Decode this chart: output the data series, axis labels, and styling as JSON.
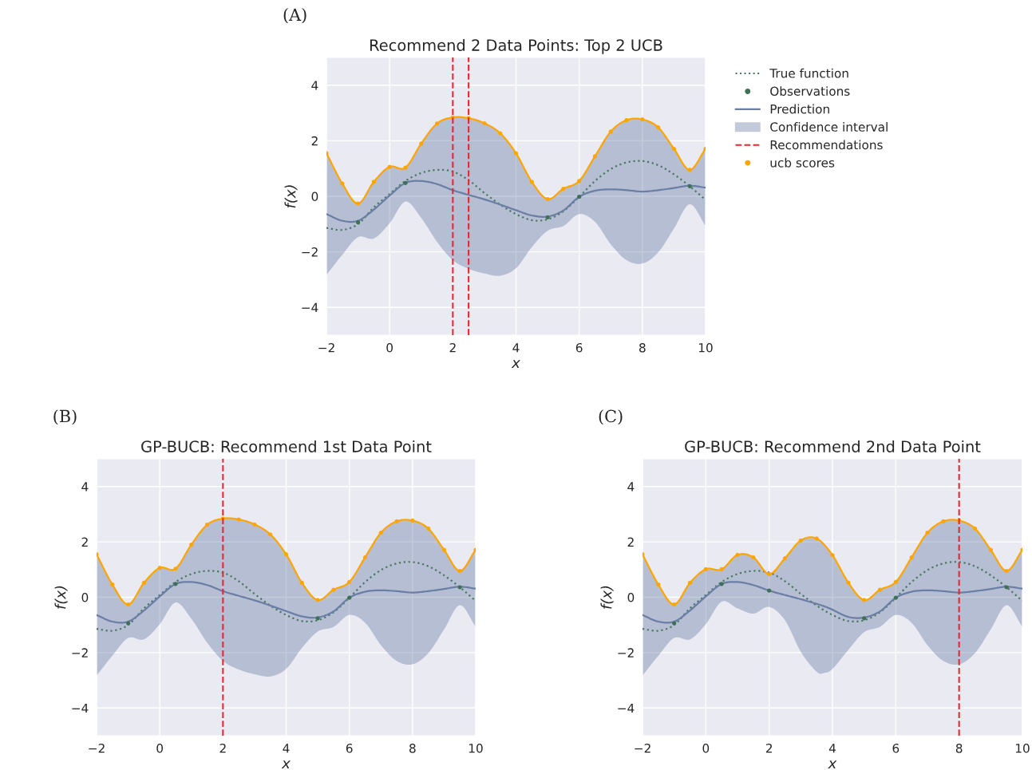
{
  "chart_data": [
    {
      "type": "line",
      "title": "Recommend 2 Data Points: Top 2 UCB",
      "xlabel": "x",
      "ylabel": "f(x)",
      "annotations": [
        "(A)",
        "Confidence interval",
        "Recommendations"
      ],
      "xlim": [
        -2,
        10
      ],
      "ylim": [
        -5,
        5
      ],
      "xticks": [
        -2,
        0,
        2,
        4,
        6,
        8,
        10
      ],
      "yticks": [
        -4,
        -2,
        0,
        2,
        4
      ],
      "grid": true,
      "legend": "right",
      "series": [
        {
          "name": "True function",
          "line_style": "dotted",
          "color": "#4a7a60",
          "x": [
            -2,
            -1.5,
            -1,
            -0.5,
            0,
            0.5,
            1,
            1.5,
            2,
            2.5,
            3,
            3.5,
            4,
            4.5,
            5,
            5.5,
            6,
            6.5,
            7,
            7.5,
            8,
            8.5,
            9,
            9.5,
            10
          ],
          "values": [
            -1.14,
            -1.21,
            -1.0,
            -0.4,
            0.08,
            0.55,
            0.84,
            0.95,
            0.89,
            0.58,
            0.12,
            -0.3,
            -0.64,
            -0.86,
            -0.83,
            -0.54,
            -0.02,
            0.55,
            0.98,
            1.22,
            1.27,
            1.12,
            0.79,
            0.36,
            -0.13
          ]
        },
        {
          "name": "Observations",
          "type": "scatter",
          "marker": "circle",
          "color": "#3f7157",
          "x": [
            -1,
            0.5,
            5,
            6,
            9.5
          ],
          "values": [
            -0.94,
            0.48,
            -0.76,
            -0.02,
            0.36
          ]
        },
        {
          "name": "Prediction",
          "color": "#6a7ea6",
          "x": [
            -2,
            -1.5,
            -1,
            -0.5,
            0,
            0.5,
            1,
            1.5,
            2,
            2.5,
            3,
            3.5,
            4,
            4.5,
            5,
            5.5,
            6,
            6.5,
            7,
            7.5,
            8,
            8.5,
            9,
            9.5,
            10
          ],
          "values": [
            -0.64,
            -0.88,
            -0.88,
            -0.48,
            0.03,
            0.48,
            0.55,
            0.44,
            0.22,
            0.05,
            -0.11,
            -0.3,
            -0.5,
            -0.69,
            -0.73,
            -0.51,
            -0.02,
            0.2,
            0.25,
            0.22,
            0.17,
            0.22,
            0.3,
            0.38,
            0.31
          ],
          "upper": [
            1.55,
            0.46,
            -0.26,
            0.52,
            1.06,
            1.03,
            1.9,
            2.62,
            2.84,
            2.81,
            2.63,
            2.27,
            1.55,
            0.52,
            -0.1,
            0.27,
            0.55,
            1.44,
            2.33,
            2.74,
            2.77,
            2.48,
            1.71,
            0.95,
            1.71
          ],
          "lower": [
            -2.83,
            -2.11,
            -1.47,
            -1.52,
            -0.97,
            -0.19,
            -0.78,
            -1.64,
            -2.3,
            -2.61,
            -2.78,
            -2.86,
            -2.59,
            -1.83,
            -1.24,
            -1.07,
            -0.64,
            -0.92,
            -1.73,
            -2.3,
            -2.42,
            -2.02,
            -1.16,
            -0.29,
            -1.07
          ]
        },
        {
          "name": "ucb scores",
          "marker": "circle",
          "color": "#ffa500",
          "x": [
            -2,
            -1.5,
            -1,
            -0.5,
            0,
            0.5,
            1,
            1.5,
            2,
            2.5,
            3,
            3.5,
            4,
            4.5,
            5,
            5.5,
            6,
            6.5,
            7,
            7.5,
            8,
            8.5,
            9,
            9.5,
            10
          ],
          "values": [
            1.55,
            0.46,
            -0.26,
            0.52,
            1.06,
            1.03,
            1.9,
            2.62,
            2.84,
            2.81,
            2.63,
            2.27,
            1.55,
            0.52,
            -0.1,
            0.27,
            0.55,
            1.44,
            2.33,
            2.74,
            2.77,
            2.48,
            1.71,
            0.95,
            1.71
          ]
        }
      ],
      "ref_lines": [
        {
          "axis": "x",
          "value": 2,
          "color": "#e8262b",
          "line_style": "dashed"
        },
        {
          "axis": "x",
          "value": 2.5,
          "color": "#e8262b",
          "line_style": "dashed"
        }
      ]
    },
    {
      "type": "line",
      "title": "GP-BUCB: Recommend 1st Data Point",
      "xlabel": "x",
      "ylabel": "f(x)",
      "annotations": [
        "(B)"
      ],
      "xlim": [
        -2,
        10
      ],
      "ylim": [
        -5,
        5
      ],
      "xticks": [
        -2,
        0,
        2,
        4,
        6,
        8,
        10
      ],
      "yticks": [
        -4,
        -2,
        0,
        2,
        4
      ],
      "grid": true,
      "series": [
        {
          "line_style": "dotted",
          "color": "#4a7a60",
          "x": [
            -2,
            -1.5,
            -1,
            -0.5,
            0,
            0.5,
            1,
            1.5,
            2,
            2.5,
            3,
            3.5,
            4,
            4.5,
            5,
            5.5,
            6,
            6.5,
            7,
            7.5,
            8,
            8.5,
            9,
            9.5,
            10
          ],
          "values": [
            -1.14,
            -1.21,
            -1.0,
            -0.4,
            0.08,
            0.55,
            0.84,
            0.95,
            0.89,
            0.58,
            0.12,
            -0.3,
            -0.64,
            -0.86,
            -0.83,
            -0.54,
            -0.02,
            0.55,
            0.98,
            1.22,
            1.27,
            1.12,
            0.79,
            0.36,
            -0.13
          ]
        },
        {
          "type": "scatter",
          "marker": "circle",
          "color": "#3f7157",
          "x": [
            -1,
            0.5,
            5,
            6,
            9.5
          ],
          "values": [
            -0.94,
            0.48,
            -0.76,
            -0.02,
            0.36
          ]
        },
        {
          "color": "#6a7ea6",
          "x": [
            -2,
            -1.5,
            -1,
            -0.5,
            0,
            0.5,
            1,
            1.5,
            2,
            2.5,
            3,
            3.5,
            4,
            4.5,
            5,
            5.5,
            6,
            6.5,
            7,
            7.5,
            8,
            8.5,
            9,
            9.5,
            10
          ],
          "values": [
            -0.64,
            -0.88,
            -0.88,
            -0.48,
            0.03,
            0.48,
            0.55,
            0.44,
            0.22,
            0.05,
            -0.11,
            -0.3,
            -0.5,
            -0.69,
            -0.73,
            -0.51,
            -0.02,
            0.2,
            0.25,
            0.22,
            0.17,
            0.22,
            0.3,
            0.38,
            0.31
          ],
          "upper": [
            1.55,
            0.46,
            -0.26,
            0.52,
            1.06,
            1.03,
            1.9,
            2.62,
            2.84,
            2.81,
            2.63,
            2.27,
            1.55,
            0.52,
            -0.1,
            0.27,
            0.55,
            1.44,
            2.33,
            2.74,
            2.77,
            2.48,
            1.71,
            0.95,
            1.71
          ],
          "lower": [
            -2.83,
            -2.11,
            -1.47,
            -1.52,
            -0.97,
            -0.19,
            -0.78,
            -1.64,
            -2.3,
            -2.61,
            -2.78,
            -2.86,
            -2.59,
            -1.83,
            -1.24,
            -1.07,
            -0.64,
            -0.92,
            -1.73,
            -2.3,
            -2.42,
            -2.02,
            -1.16,
            -0.29,
            -1.07
          ]
        },
        {
          "marker": "circle",
          "color": "#ffa500",
          "x": [
            -2,
            -1.5,
            -1,
            -0.5,
            0,
            0.5,
            1,
            1.5,
            2,
            2.5,
            3,
            3.5,
            4,
            4.5,
            5,
            5.5,
            6,
            6.5,
            7,
            7.5,
            8,
            8.5,
            9,
            9.5,
            10
          ],
          "values": [
            1.55,
            0.46,
            -0.26,
            0.52,
            1.06,
            1.03,
            1.9,
            2.62,
            2.84,
            2.81,
            2.63,
            2.27,
            1.55,
            0.52,
            -0.1,
            0.27,
            0.55,
            1.44,
            2.33,
            2.74,
            2.77,
            2.48,
            1.71,
            0.95,
            1.71
          ]
        }
      ],
      "ref_lines": [
        {
          "axis": "x",
          "value": 2,
          "color": "#e8262b",
          "line_style": "dashed"
        }
      ]
    },
    {
      "type": "line",
      "title": "GP-BUCB: Recommend 2nd Data Point",
      "xlabel": "x",
      "ylabel": "f(x)",
      "annotations": [
        "(C)"
      ],
      "xlim": [
        -2,
        10
      ],
      "ylim": [
        -5,
        5
      ],
      "xticks": [
        -2,
        0,
        2,
        4,
        6,
        8,
        10
      ],
      "yticks": [
        -4,
        -2,
        0,
        2,
        4
      ],
      "grid": true,
      "series": [
        {
          "line_style": "dotted",
          "color": "#4a7a60",
          "x": [
            -2,
            -1.5,
            -1,
            -0.5,
            0,
            0.5,
            1,
            1.5,
            2,
            2.5,
            3,
            3.5,
            4,
            4.5,
            5,
            5.5,
            6,
            6.5,
            7,
            7.5,
            8,
            8.5,
            9,
            9.5,
            10
          ],
          "values": [
            -1.14,
            -1.21,
            -1.0,
            -0.4,
            0.08,
            0.55,
            0.84,
            0.95,
            0.89,
            0.58,
            0.12,
            -0.3,
            -0.64,
            -0.86,
            -0.83,
            -0.54,
            -0.02,
            0.55,
            0.98,
            1.22,
            1.27,
            1.12,
            0.79,
            0.36,
            -0.13
          ]
        },
        {
          "type": "scatter",
          "marker": "circle",
          "color": "#3f7157",
          "x": [
            -1,
            0.5,
            2,
            5,
            6,
            9.5
          ],
          "values": [
            -0.94,
            0.48,
            0.24,
            -0.76,
            -0.02,
            0.36
          ]
        },
        {
          "color": "#6a7ea6",
          "x": [
            -2,
            -1.5,
            -1,
            -0.5,
            0,
            0.5,
            1,
            1.5,
            2,
            2.5,
            3,
            3.5,
            3.75,
            4,
            4.5,
            5,
            5.5,
            6,
            6.5,
            7,
            7.5,
            8,
            8.5,
            9,
            9.5,
            10
          ],
          "values": [
            -0.64,
            -0.88,
            -0.88,
            -0.48,
            0.03,
            0.48,
            0.55,
            0.44,
            0.24,
            0.08,
            -0.07,
            -0.24,
            -0.33,
            -0.45,
            -0.71,
            -0.73,
            -0.51,
            -0.02,
            0.2,
            0.25,
            0.22,
            0.17,
            0.22,
            0.3,
            0.38,
            0.31
          ],
          "upper": [
            1.55,
            0.46,
            -0.26,
            0.52,
            1.01,
            1.01,
            1.53,
            1.44,
            0.84,
            1.41,
            2.05,
            2.12,
            1.9,
            1.52,
            0.53,
            -0.1,
            0.27,
            0.55,
            1.44,
            2.33,
            2.74,
            2.77,
            2.48,
            1.71,
            0.95,
            1.71
          ],
          "lower": [
            -2.83,
            -2.11,
            -1.47,
            -1.52,
            -0.97,
            -0.16,
            -0.4,
            -0.59,
            -0.35,
            -0.83,
            -1.97,
            -2.69,
            -2.73,
            -2.59,
            -1.9,
            -1.26,
            -1.07,
            -0.64,
            -0.92,
            -1.73,
            -2.3,
            -2.42,
            -2.02,
            -1.16,
            -0.29,
            -1.07
          ]
        },
        {
          "marker": "circle",
          "color": "#ffa500",
          "x": [
            -2,
            -1.5,
            -1,
            -0.5,
            0,
            0.5,
            1,
            1.5,
            2,
            2.5,
            3,
            3.5,
            4,
            4.5,
            5,
            5.5,
            6,
            6.5,
            7,
            7.5,
            8,
            8.5,
            9,
            9.5,
            10
          ],
          "values": [
            1.55,
            0.46,
            -0.26,
            0.52,
            1.01,
            1.01,
            1.53,
            1.44,
            0.84,
            1.41,
            2.05,
            2.12,
            1.52,
            0.53,
            -0.1,
            0.27,
            0.55,
            1.44,
            2.33,
            2.74,
            2.77,
            2.48,
            1.71,
            0.95,
            1.71
          ]
        }
      ],
      "ref_lines": [
        {
          "axis": "x",
          "value": 8,
          "color": "#e8262b",
          "line_style": "dashed"
        }
      ]
    }
  ]
}
